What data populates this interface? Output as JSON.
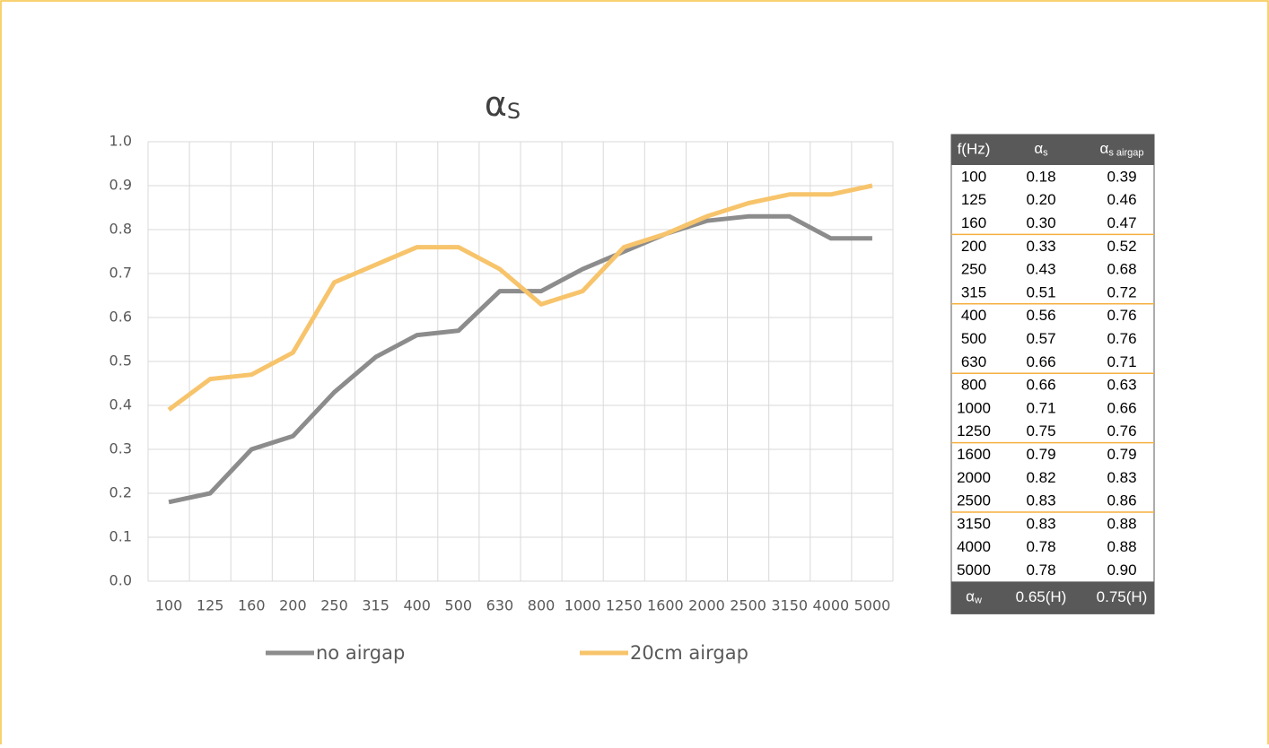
{
  "chart_data": {
    "type": "line",
    "title": {
      "main": "α",
      "sub": "S"
    },
    "categories": [
      "100",
      "125",
      "160",
      "200",
      "250",
      "315",
      "400",
      "500",
      "630",
      "800",
      "1000",
      "1250",
      "1600",
      "2000",
      "2500",
      "3150",
      "4000",
      "5000"
    ],
    "series": [
      {
        "name": "no airgap",
        "color": "#8c8c8c",
        "values": [
          0.18,
          0.2,
          0.3,
          0.33,
          0.43,
          0.51,
          0.56,
          0.57,
          0.66,
          0.66,
          0.71,
          0.75,
          0.79,
          0.82,
          0.83,
          0.83,
          0.78,
          0.78
        ]
      },
      {
        "name": "20cm airgap",
        "color": "#f7c46c",
        "values": [
          0.39,
          0.46,
          0.47,
          0.52,
          0.68,
          0.72,
          0.76,
          0.76,
          0.71,
          0.63,
          0.66,
          0.76,
          0.79,
          0.83,
          0.86,
          0.88,
          0.88,
          0.9
        ]
      }
    ],
    "ylim": [
      0,
      1
    ],
    "yticks": [
      {
        "value": 0,
        "label": "0.0"
      },
      0.1,
      0.2,
      0.3,
      0.4,
      0.5,
      0.6,
      0.7,
      0.8,
      0.9,
      {
        "value": 1,
        "label": "1.0"
      }
    ],
    "grid": true,
    "legend": "bottom"
  },
  "table": {
    "header": [
      "f(Hz)",
      {
        "main": "α",
        "sub": "s"
      },
      {
        "main": "α",
        "sub": "s airgap"
      }
    ],
    "rows": [
      [
        "100",
        "0.18",
        "0.39"
      ],
      [
        "125",
        "0.20",
        "0.46"
      ],
      [
        "160",
        "0.30",
        "0.47"
      ],
      [
        "200",
        "0.33",
        "0.52"
      ],
      [
        "250",
        "0.43",
        "0.68"
      ],
      [
        "315",
        "0.51",
        "0.72"
      ],
      [
        "400",
        "0.56",
        "0.76"
      ],
      [
        "500",
        "0.57",
        "0.76"
      ],
      [
        "630",
        "0.66",
        "0.71"
      ],
      [
        "800",
        "0.66",
        "0.63"
      ],
      [
        "1000",
        "0.71",
        "0.66"
      ],
      [
        "1250",
        "0.75",
        "0.76"
      ],
      [
        "1600",
        "0.79",
        "0.79"
      ],
      [
        "2000",
        "0.82",
        "0.83"
      ],
      [
        "2500",
        "0.83",
        "0.86"
      ],
      [
        "3150",
        "0.83",
        "0.88"
      ],
      [
        "4000",
        "0.78",
        "0.88"
      ],
      [
        "5000",
        "0.78",
        "0.90"
      ]
    ],
    "footer": [
      {
        "main": "α",
        "sub": "w"
      },
      "0.65(H)",
      "0.75(H)"
    ]
  }
}
